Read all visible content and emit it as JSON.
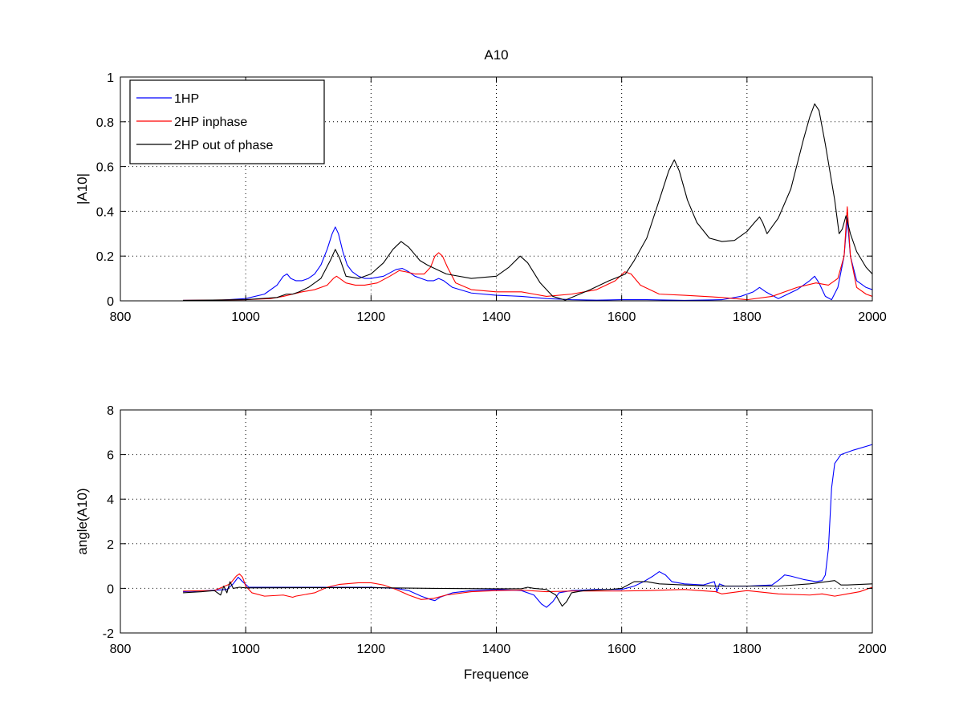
{
  "chart_data": [
    {
      "type": "line",
      "title": "A10",
      "xlabel": "",
      "ylabel": "|A10|",
      "xlim": [
        800,
        2000
      ],
      "ylim": [
        0,
        1
      ],
      "xticks": [
        800,
        1000,
        1200,
        1400,
        1600,
        1800,
        2000
      ],
      "yticks": [
        0,
        0.2,
        0.4,
        0.6,
        0.8,
        1
      ],
      "ytick_labels": [
        "0",
        "0.2",
        "0.4",
        "0.6",
        "0.8",
        "1"
      ],
      "grid": true,
      "legend": "top-left",
      "series": [
        {
          "name": "1HP",
          "color": "#0000ff",
          "x": [
            900,
            960,
            1000,
            1030,
            1050,
            1060,
            1066,
            1072,
            1080,
            1090,
            1100,
            1110,
            1120,
            1130,
            1138,
            1143,
            1148,
            1155,
            1162,
            1170,
            1180,
            1190,
            1200,
            1220,
            1240,
            1250,
            1260,
            1270,
            1280,
            1290,
            1300,
            1308,
            1316,
            1330,
            1360,
            1400,
            1440,
            1480,
            1520,
            1560,
            1600,
            1640,
            1700,
            1760,
            1790,
            1810,
            1820,
            1830,
            1850,
            1880,
            1900,
            1908,
            1915,
            1925,
            1935,
            1945,
            1955,
            1960,
            1965,
            1975,
            1990,
            2000
          ],
          "y": [
            0.002,
            0.003,
            0.01,
            0.03,
            0.07,
            0.11,
            0.12,
            0.1,
            0.09,
            0.09,
            0.1,
            0.12,
            0.16,
            0.23,
            0.3,
            0.33,
            0.3,
            0.22,
            0.16,
            0.13,
            0.11,
            0.1,
            0.1,
            0.11,
            0.14,
            0.145,
            0.13,
            0.11,
            0.1,
            0.09,
            0.09,
            0.1,
            0.09,
            0.06,
            0.035,
            0.025,
            0.02,
            0.01,
            0.005,
            0.003,
            0.005,
            0.005,
            0.002,
            0.005,
            0.02,
            0.04,
            0.06,
            0.04,
            0.01,
            0.05,
            0.09,
            0.11,
            0.08,
            0.02,
            0.005,
            0.06,
            0.2,
            0.37,
            0.2,
            0.09,
            0.06,
            0.05
          ]
        },
        {
          "name": "2HP inphase",
          "color": "#ff0000",
          "x": [
            900,
            1000,
            1040,
            1060,
            1075,
            1090,
            1110,
            1130,
            1140,
            1145,
            1150,
            1160,
            1175,
            1190,
            1210,
            1230,
            1245,
            1255,
            1270,
            1285,
            1295,
            1302,
            1308,
            1314,
            1322,
            1335,
            1360,
            1400,
            1440,
            1460,
            1480,
            1520,
            1560,
            1590,
            1605,
            1615,
            1630,
            1660,
            1700,
            1760,
            1800,
            1840,
            1880,
            1910,
            1930,
            1945,
            1955,
            1960,
            1965,
            1975,
            1990,
            2000
          ],
          "y": [
            0.002,
            0.005,
            0.01,
            0.02,
            0.03,
            0.04,
            0.05,
            0.07,
            0.1,
            0.11,
            0.1,
            0.08,
            0.07,
            0.07,
            0.08,
            0.11,
            0.135,
            0.13,
            0.12,
            0.12,
            0.15,
            0.2,
            0.215,
            0.2,
            0.15,
            0.08,
            0.05,
            0.04,
            0.04,
            0.03,
            0.02,
            0.03,
            0.05,
            0.09,
            0.13,
            0.12,
            0.07,
            0.03,
            0.025,
            0.015,
            0.005,
            0.02,
            0.06,
            0.08,
            0.07,
            0.1,
            0.2,
            0.42,
            0.2,
            0.06,
            0.03,
            0.02
          ]
        },
        {
          "name": "2HP out of phase",
          "color": "#000000",
          "x": [
            900,
            1000,
            1050,
            1065,
            1075,
            1085,
            1100,
            1120,
            1135,
            1143,
            1150,
            1160,
            1180,
            1200,
            1220,
            1235,
            1248,
            1260,
            1272,
            1278,
            1290,
            1320,
            1360,
            1400,
            1420,
            1438,
            1450,
            1470,
            1490,
            1510,
            1550,
            1580,
            1598,
            1606,
            1620,
            1640,
            1660,
            1675,
            1684,
            1692,
            1705,
            1720,
            1740,
            1760,
            1780,
            1800,
            1812,
            1820,
            1825,
            1832,
            1850,
            1870,
            1890,
            1900,
            1908,
            1915,
            1925,
            1940,
            1947,
            1952,
            1958,
            1965,
            1975,
            1990,
            2000
          ],
          "y": [
            0.002,
            0.005,
            0.015,
            0.03,
            0.03,
            0.04,
            0.06,
            0.1,
            0.18,
            0.23,
            0.19,
            0.11,
            0.1,
            0.12,
            0.17,
            0.23,
            0.265,
            0.24,
            0.2,
            0.18,
            0.16,
            0.12,
            0.1,
            0.11,
            0.15,
            0.2,
            0.17,
            0.08,
            0.02,
            0.003,
            0.05,
            0.09,
            0.11,
            0.12,
            0.18,
            0.28,
            0.45,
            0.58,
            0.63,
            0.58,
            0.45,
            0.35,
            0.28,
            0.265,
            0.27,
            0.31,
            0.35,
            0.375,
            0.35,
            0.3,
            0.37,
            0.5,
            0.72,
            0.82,
            0.88,
            0.85,
            0.7,
            0.45,
            0.3,
            0.32,
            0.38,
            0.3,
            0.22,
            0.15,
            0.12
          ]
        }
      ]
    },
    {
      "type": "line",
      "title": "",
      "xlabel": "Frequence",
      "ylabel": "angle(A10)",
      "xlim": [
        800,
        2000
      ],
      "ylim": [
        -2,
        8
      ],
      "xticks": [
        800,
        1000,
        1200,
        1400,
        1600,
        1800,
        2000
      ],
      "yticks": [
        -2,
        0,
        2,
        4,
        6,
        8
      ],
      "ytick_labels": [
        "-2",
        "0",
        "2",
        "4",
        "6",
        "8"
      ],
      "grid": true,
      "series": [
        {
          "name": "1HP",
          "color": "#0000ff",
          "x": [
            900,
            940,
            970,
            980,
            988,
            995,
            1005,
            1050,
            1100,
            1150,
            1200,
            1240,
            1260,
            1280,
            1295,
            1302,
            1310,
            1330,
            1360,
            1400,
            1440,
            1460,
            1472,
            1480,
            1490,
            1500,
            1520,
            1560,
            1600,
            1620,
            1635,
            1650,
            1660,
            1670,
            1680,
            1700,
            1730,
            1748,
            1752,
            1756,
            1765,
            1800,
            1840,
            1852,
            1860,
            1870,
            1890,
            1910,
            1920,
            1925,
            1930,
            1935,
            1940,
            1950,
            1970,
            2000
          ],
          "y": [
            -0.15,
            -0.1,
            -0.05,
            0.2,
            0.5,
            0.3,
            0.05,
            0.05,
            0.05,
            0.05,
            0.05,
            0.0,
            -0.1,
            -0.35,
            -0.5,
            -0.55,
            -0.4,
            -0.2,
            -0.1,
            -0.05,
            -0.1,
            -0.3,
            -0.7,
            -0.85,
            -0.6,
            -0.2,
            -0.1,
            -0.05,
            -0.05,
            0.1,
            0.3,
            0.55,
            0.75,
            0.6,
            0.3,
            0.2,
            0.15,
            0.3,
            -0.15,
            0.2,
            0.1,
            0.1,
            0.15,
            0.4,
            0.6,
            0.55,
            0.4,
            0.3,
            0.35,
            0.6,
            1.8,
            4.5,
            5.6,
            6.0,
            6.2,
            6.45
          ]
        },
        {
          "name": "2HP inphase",
          "color": "#ff0000",
          "x": [
            900,
            950,
            975,
            985,
            990,
            995,
            1000,
            1010,
            1030,
            1060,
            1075,
            1080,
            1090,
            1110,
            1130,
            1150,
            1180,
            1200,
            1220,
            1240,
            1260,
            1280,
            1300,
            1320,
            1360,
            1400,
            1440,
            1480,
            1520,
            1560,
            1600,
            1640,
            1700,
            1750,
            1760,
            1800,
            1850,
            1900,
            1920,
            1940,
            1960,
            1980,
            2000
          ],
          "y": [
            -0.12,
            -0.1,
            0.2,
            0.55,
            0.65,
            0.5,
            0.1,
            -0.2,
            -0.35,
            -0.3,
            -0.4,
            -0.35,
            -0.3,
            -0.2,
            0.05,
            0.18,
            0.25,
            0.25,
            0.15,
            -0.05,
            -0.3,
            -0.5,
            -0.45,
            -0.3,
            -0.15,
            -0.1,
            -0.08,
            -0.15,
            -0.12,
            -0.12,
            -0.12,
            -0.1,
            -0.05,
            -0.15,
            -0.25,
            -0.1,
            -0.25,
            -0.3,
            -0.25,
            -0.35,
            -0.25,
            -0.15,
            0.05
          ]
        },
        {
          "name": "2HP out of phase",
          "color": "#000000",
          "x": [
            900,
            930,
            950,
            960,
            965,
            970,
            975,
            980,
            990,
            1000,
            1100,
            1200,
            1300,
            1400,
            1440,
            1450,
            1460,
            1480,
            1495,
            1505,
            1512,
            1520,
            1540,
            1580,
            1600,
            1620,
            1640,
            1660,
            1700,
            1750,
            1800,
            1850,
            1900,
            1940,
            1950,
            1960,
            2000
          ],
          "y": [
            -0.2,
            -0.15,
            -0.1,
            -0.3,
            0.1,
            -0.2,
            0.3,
            0.0,
            0.05,
            0.02,
            0.03,
            0.03,
            0.0,
            -0.02,
            -0.02,
            0.05,
            0.0,
            -0.05,
            -0.3,
            -0.8,
            -0.6,
            -0.2,
            -0.1,
            -0.05,
            0.0,
            0.3,
            0.3,
            0.2,
            0.15,
            0.1,
            0.1,
            0.1,
            0.2,
            0.35,
            0.15,
            0.15,
            0.2
          ]
        }
      ]
    }
  ]
}
